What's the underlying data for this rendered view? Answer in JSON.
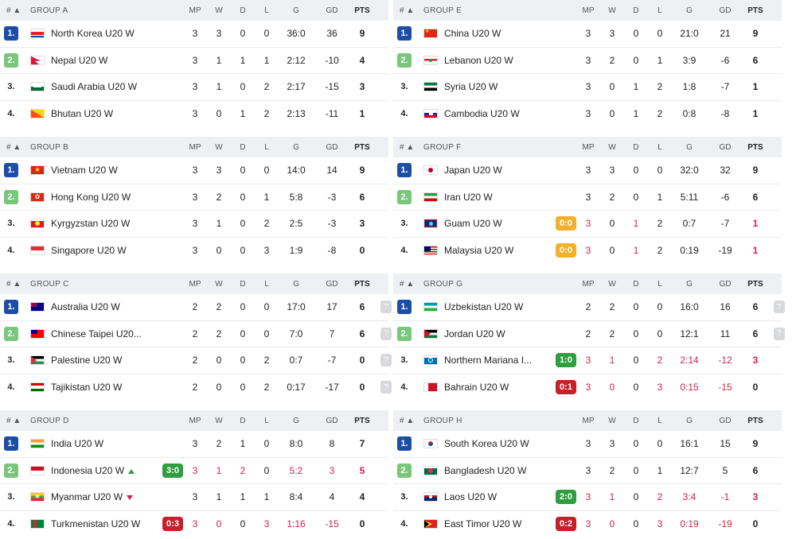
{
  "columns": {
    "hash": "# ▲",
    "mp": "MP",
    "w": "W",
    "d": "D",
    "l": "L",
    "g": "G",
    "gd": "GD",
    "pts": "PTS"
  },
  "groups": [
    {
      "name": "GROUP A",
      "rows": [
        {
          "rank": "1.",
          "flag": "north-korea",
          "team": "North Korea U20 W",
          "mp": "3",
          "w": "3",
          "d": "0",
          "l": "0",
          "g": "36:0",
          "gd": "36",
          "pts": "9"
        },
        {
          "rank": "2.",
          "flag": "nepal",
          "team": "Nepal U20 W",
          "mp": "3",
          "w": "1",
          "d": "1",
          "l": "1",
          "g": "2:12",
          "gd": "-10",
          "pts": "4"
        },
        {
          "rank": "3.",
          "flag": "saudi-arabia",
          "team": "Saudi Arabia U20 W",
          "mp": "3",
          "w": "1",
          "d": "0",
          "l": "2",
          "g": "2:17",
          "gd": "-15",
          "pts": "3"
        },
        {
          "rank": "4.",
          "flag": "bhutan",
          "team": "Bhutan U20 W",
          "mp": "3",
          "w": "0",
          "d": "1",
          "l": "2",
          "g": "2:13",
          "gd": "-11",
          "pts": "1"
        }
      ]
    },
    {
      "name": "GROUP E",
      "rows": [
        {
          "rank": "1.",
          "flag": "china",
          "team": "China U20 W",
          "mp": "3",
          "w": "3",
          "d": "0",
          "l": "0",
          "g": "21:0",
          "gd": "21",
          "pts": "9"
        },
        {
          "rank": "2.",
          "flag": "lebanon",
          "team": "Lebanon U20 W",
          "mp": "3",
          "w": "2",
          "d": "0",
          "l": "1",
          "g": "3:9",
          "gd": "-6",
          "pts": "6"
        },
        {
          "rank": "3.",
          "flag": "syria",
          "team": "Syria U20 W",
          "mp": "3",
          "w": "0",
          "d": "1",
          "l": "2",
          "g": "1:8",
          "gd": "-7",
          "pts": "1"
        },
        {
          "rank": "4.",
          "flag": "cambodia",
          "team": "Cambodia U20 W",
          "mp": "3",
          "w": "0",
          "d": "1",
          "l": "2",
          "g": "0:8",
          "gd": "-8",
          "pts": "1"
        }
      ]
    },
    {
      "name": "GROUP B",
      "rows": [
        {
          "rank": "1.",
          "flag": "vietnam",
          "team": "Vietnam U20 W",
          "mp": "3",
          "w": "3",
          "d": "0",
          "l": "0",
          "g": "14:0",
          "gd": "14",
          "pts": "9"
        },
        {
          "rank": "2.",
          "flag": "hong-kong",
          "team": "Hong Kong U20 W",
          "mp": "3",
          "w": "2",
          "d": "0",
          "l": "1",
          "g": "5:8",
          "gd": "-3",
          "pts": "6"
        },
        {
          "rank": "3.",
          "flag": "kyrgyzstan",
          "team": "Kyrgyzstan U20 W",
          "mp": "3",
          "w": "1",
          "d": "0",
          "l": "2",
          "g": "2:5",
          "gd": "-3",
          "pts": "3"
        },
        {
          "rank": "4.",
          "flag": "singapore",
          "team": "Singapore U20 W",
          "mp": "3",
          "w": "0",
          "d": "0",
          "l": "3",
          "g": "1:9",
          "gd": "-8",
          "pts": "0"
        }
      ]
    },
    {
      "name": "GROUP F",
      "rows": [
        {
          "rank": "1.",
          "flag": "japan",
          "team": "Japan U20 W",
          "mp": "3",
          "w": "3",
          "d": "0",
          "l": "0",
          "g": "32:0",
          "gd": "32",
          "pts": "9"
        },
        {
          "rank": "2.",
          "flag": "iran",
          "team": "Iran U20 W",
          "mp": "3",
          "w": "2",
          "d": "0",
          "l": "1",
          "g": "5:11",
          "gd": "-6",
          "pts": "6"
        },
        {
          "rank": "3.",
          "flag": "guam",
          "team": "Guam U20 W",
          "live": "0:0",
          "live_color": "orange",
          "red_d": true,
          "mp": "3",
          "w": "0",
          "d": "1",
          "l": "2",
          "g": "0:7",
          "gd": "-7",
          "pts": "1"
        },
        {
          "rank": "4.",
          "flag": "malaysia",
          "team": "Malaysia U20 W",
          "live": "0:0",
          "live_color": "orange",
          "red_d": true,
          "mp": "3",
          "w": "0",
          "d": "1",
          "l": "2",
          "g": "0:19",
          "gd": "-19",
          "pts": "1"
        }
      ]
    },
    {
      "name": "GROUP C",
      "rows": [
        {
          "rank": "1.",
          "flag": "australia",
          "team": "Australia U20 W",
          "q": "?",
          "mp": "2",
          "w": "2",
          "d": "0",
          "l": "0",
          "g": "17:0",
          "gd": "17",
          "pts": "6"
        },
        {
          "rank": "2.",
          "flag": "chinese-taipei",
          "team": "Chinese Taipei U20...",
          "q": "?",
          "mp": "2",
          "w": "2",
          "d": "0",
          "l": "0",
          "g": "7:0",
          "gd": "7",
          "pts": "6"
        },
        {
          "rank": "3.",
          "flag": "palestine",
          "team": "Palestine U20 W",
          "q": "?",
          "mp": "2",
          "w": "0",
          "d": "0",
          "l": "2",
          "g": "0:7",
          "gd": "-7",
          "pts": "0"
        },
        {
          "rank": "4.",
          "flag": "tajikistan",
          "team": "Tajikistan U20 W",
          "q": "?",
          "mp": "2",
          "w": "0",
          "d": "0",
          "l": "2",
          "g": "0:17",
          "gd": "-17",
          "pts": "0"
        }
      ]
    },
    {
      "name": "GROUP G",
      "rows": [
        {
          "rank": "1.",
          "flag": "uzbekistan",
          "team": "Uzbekistan U20 W",
          "q": "?",
          "mp": "2",
          "w": "2",
          "d": "0",
          "l": "0",
          "g": "16:0",
          "gd": "16",
          "pts": "6"
        },
        {
          "rank": "2.",
          "flag": "jordan",
          "team": "Jordan U20 W",
          "q": "?",
          "mp": "2",
          "w": "2",
          "d": "0",
          "l": "0",
          "g": "12:1",
          "gd": "11",
          "pts": "6"
        },
        {
          "rank": "3.",
          "flag": "northern-mariana",
          "team": "Northern Mariana I...",
          "live": "1:0",
          "live_color": "green",
          "red_all": true,
          "mp": "3",
          "w": "1",
          "d": "0",
          "l": "2",
          "g": "2:14",
          "gd": "-12",
          "pts": "3"
        },
        {
          "rank": "4.",
          "flag": "bahrain",
          "team": "Bahrain U20 W",
          "live": "0:1",
          "live_color": "red",
          "red_all": true,
          "mp": "3",
          "w": "0",
          "d": "0",
          "l": "3",
          "g": "0:15",
          "gd": "-15",
          "pts": "0"
        }
      ]
    },
    {
      "name": "GROUP D",
      "rows": [
        {
          "rank": "1.",
          "flag": "india",
          "team": "India U20 W",
          "mp": "3",
          "w": "2",
          "d": "1",
          "l": "0",
          "g": "8:0",
          "gd": "8",
          "pts": "7"
        },
        {
          "rank": "2.",
          "flag": "indonesia",
          "team": "Indonesia U20 W",
          "trend": "up",
          "live": "3:0",
          "live_color": "green",
          "red_all": true,
          "mp": "3",
          "w": "1",
          "d": "2",
          "l": "0",
          "g": "5:2",
          "gd": "3",
          "pts": "5"
        },
        {
          "rank": "3.",
          "flag": "myanmar",
          "team": "Myanmar U20 W",
          "trend": "down",
          "mp": "3",
          "w": "1",
          "d": "1",
          "l": "1",
          "g": "8:4",
          "gd": "4",
          "pts": "4"
        },
        {
          "rank": "4.",
          "flag": "turkmenistan",
          "team": "Turkmenistan U20 W",
          "live": "0:3",
          "live_color": "red",
          "red_all": true,
          "mp": "3",
          "w": "0",
          "d": "0",
          "l": "3",
          "g": "1:16",
          "gd": "-15",
          "pts": "0"
        }
      ]
    },
    {
      "name": "GROUP H",
      "rows": [
        {
          "rank": "1.",
          "flag": "south-korea",
          "team": "South Korea U20 W",
          "mp": "3",
          "w": "3",
          "d": "0",
          "l": "0",
          "g": "16:1",
          "gd": "15",
          "pts": "9"
        },
        {
          "rank": "2.",
          "flag": "bangladesh",
          "team": "Bangladesh U20 W",
          "mp": "3",
          "w": "2",
          "d": "0",
          "l": "1",
          "g": "12:7",
          "gd": "5",
          "pts": "6"
        },
        {
          "rank": "3.",
          "flag": "laos",
          "team": "Laos U20 W",
          "live": "2:0",
          "live_color": "green",
          "red_all": true,
          "mp": "3",
          "w": "1",
          "d": "0",
          "l": "2",
          "g": "3:4",
          "gd": "-1",
          "pts": "3"
        },
        {
          "rank": "4.",
          "flag": "east-timor",
          "team": "East Timor U20 W",
          "live": "0:2",
          "live_color": "red",
          "red_all": true,
          "mp": "3",
          "w": "0",
          "d": "0",
          "l": "3",
          "g": "0:19",
          "gd": "-19",
          "pts": "0"
        }
      ]
    }
  ]
}
